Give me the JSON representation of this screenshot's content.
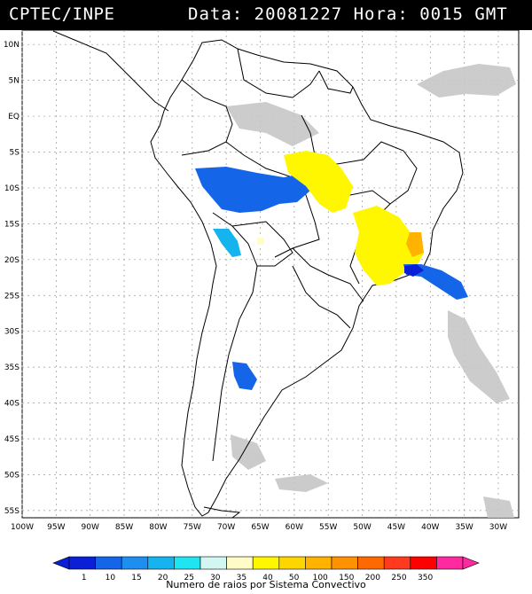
{
  "header": {
    "agency": "CPTEC/INPE",
    "timestamp": "Data: 20081227 Hora: 0015 GMT"
  },
  "map": {
    "lat_labels": [
      "10N",
      "5N",
      "EQ",
      "5S",
      "10S",
      "15S",
      "20S",
      "25S",
      "30S",
      "35S",
      "40S",
      "45S",
      "50S",
      "55S"
    ],
    "lon_labels": [
      "100W",
      "95W",
      "90W",
      "85W",
      "80W",
      "75W",
      "70W",
      "65W",
      "60W",
      "55W",
      "50W",
      "45W",
      "40W",
      "35W",
      "30W"
    ],
    "extent": {
      "lon_min": -100,
      "lon_max": -27,
      "lat_min": -56,
      "lat_max": 12
    },
    "gridlines": true
  },
  "colorbar": {
    "ticks": [
      "1",
      "10",
      "15",
      "20",
      "25",
      "30",
      "35",
      "40",
      "50",
      "100",
      "150",
      "200",
      "250",
      "350"
    ],
    "colors": [
      "#0a1fd6",
      "#1565e8",
      "#1e8ff0",
      "#16b4ef",
      "#1fe5f0",
      "#d2f6f2",
      "#fffcc8",
      "#fff700",
      "#ffd500",
      "#ffb300",
      "#ff9200",
      "#ff6a00",
      "#ff3a1f",
      "#ff0000",
      "#ff2aa0"
    ],
    "caption": "Numero de raios por Sistema Convectivo"
  },
  "cloud_color": "#c4c4c4"
}
